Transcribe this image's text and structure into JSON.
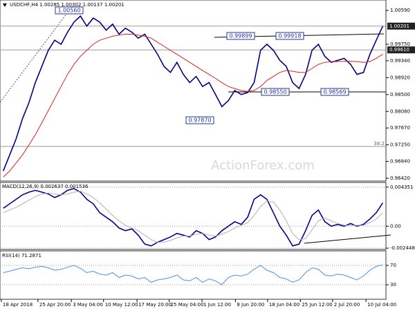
{
  "chart_data": [
    {
      "type": "line",
      "title": "USDCHF,H4 1.00285 1.00302 1.00137 1.00201",
      "watermark": "ActionForex.com",
      "xlim": [
        -0.5,
        59.5
      ],
      "ylim": [
        0.9635,
        1.0085
      ],
      "yticks": [
        {
          "value": 1.0059,
          "label": "1.00590"
        },
        {
          "value": 0.9975,
          "label": "0.99750"
        },
        {
          "value": 0.9934,
          "label": "0.99340"
        },
        {
          "value": 0.9892,
          "label": "0.98920"
        },
        {
          "value": 0.985,
          "label": "0.98500"
        },
        {
          "value": 0.9808,
          "label": "0.98080"
        },
        {
          "value": 0.9767,
          "label": "0.97670"
        },
        {
          "value": 0.9725,
          "label": "0.97250"
        },
        {
          "value": 0.9684,
          "label": "0.96840"
        },
        {
          "value": 0.9642,
          "label": "0.96420"
        }
      ],
      "levels": [
        {
          "value": 1.00201,
          "label": "1.00201"
        },
        {
          "value": 0.9961,
          "label": "0.99610"
        }
      ],
      "fib": {
        "value": 0.9721,
        "label": "38.2"
      },
      "annotations": [
        "1.00560",
        "0.99899",
        "0.99918",
        "0.98550",
        "0.98569",
        "0.97870"
      ],
      "series": [
        {
          "name": "Price",
          "color": "#000080",
          "values": [
            0.966,
            0.97,
            0.974,
            0.979,
            0.983,
            0.988,
            0.992,
            0.996,
            0.9985,
            0.9975,
            1.0005,
            1.003,
            1.0045,
            1.002,
            1.004,
            1.003,
            1.001,
            1.0025,
            1.0,
            1.0015,
            1.0005,
            0.999,
            1.0,
            0.9975,
            0.995,
            0.992,
            0.9905,
            0.993,
            0.99,
            0.988,
            0.9895,
            0.987,
            0.988,
            0.985,
            0.982,
            0.9835,
            0.986,
            0.985,
            0.9855,
            0.988,
            0.996,
            0.9975,
            0.996,
            0.9935,
            0.992,
            0.988,
            0.9865,
            0.99,
            0.996,
            0.9975,
            0.9945,
            0.993,
            0.9935,
            0.994,
            0.9925,
            0.99,
            0.9905,
            0.995,
            0.9985,
            1.002
          ]
        },
        {
          "name": "MA",
          "color": "#e02020",
          "values": [
            0.9645,
            0.966,
            0.968,
            0.97,
            0.9725,
            0.975,
            0.978,
            0.981,
            0.984,
            0.987,
            0.99,
            0.9925,
            0.9945,
            0.996,
            0.9975,
            0.9985,
            0.999,
            0.9995,
            0.9998,
            1.0,
            1.0,
            0.9998,
            0.9995,
            0.999,
            0.998,
            0.997,
            0.996,
            0.995,
            0.994,
            0.993,
            0.992,
            0.991,
            0.99,
            0.989,
            0.988,
            0.987,
            0.9865,
            0.986,
            0.9858,
            0.986,
            0.987,
            0.9885,
            0.9895,
            0.9905,
            0.991,
            0.9908,
            0.9905,
            0.9905,
            0.9915,
            0.9925,
            0.993,
            0.9932,
            0.9932,
            0.9933,
            0.9933,
            0.9932,
            0.993,
            0.9932,
            0.994,
            0.995
          ]
        }
      ]
    },
    {
      "type": "line",
      "title": "MACD(12,26,9) 0.002637 0.001536",
      "grid": true,
      "xlim": [
        -0.5,
        59.5
      ],
      "ylim": [
        -0.0026,
        0.00488
      ],
      "yticks": [
        0.004351,
        {
          "value": 0,
          "label": "0.00"
        },
        -0.002448
      ],
      "series": [
        {
          "name": "MACD",
          "color": "#00008b",
          "values": [
            0.002,
            0.0025,
            0.003,
            0.0035,
            0.0038,
            0.004,
            0.0038,
            0.0036,
            0.0032,
            0.0035,
            0.004,
            0.0042,
            0.0038,
            0.003,
            0.0025,
            0.0015,
            0.001,
            0.0005,
            -0.0002,
            -0.0005,
            -0.0003,
            -0.001,
            -0.002,
            -0.0022,
            -0.0018,
            -0.0015,
            -0.0012,
            -0.0008,
            -0.001,
            -0.0012,
            -0.0005,
            -0.0008,
            -0.0015,
            -0.0012,
            -0.0005,
            0.0,
            0.0005,
            0.0002,
            0.001,
            0.003,
            0.0035,
            0.003,
            0.0015,
            0.0,
            -0.001,
            -0.0022,
            -0.002,
            -0.0005,
            0.0012,
            0.0018,
            0.0005,
            0.0,
            0.0002,
            0.0,
            0.0003,
            0.0,
            0.0002,
            0.0008,
            0.0015,
            0.0026
          ]
        },
        {
          "name": "Signal",
          "color": "#b0b0b0",
          "values": [
            0.0015,
            0.0018,
            0.0021,
            0.0025,
            0.0029,
            0.0033,
            0.0036,
            0.0037,
            0.0036,
            0.0035,
            0.0036,
            0.0038,
            0.0039,
            0.0036,
            0.0032,
            0.0026,
            0.0019,
            0.0012,
            0.0006,
            0.0001,
            -0.0002,
            -0.0005,
            -0.001,
            -0.0015,
            -0.0018,
            -0.0018,
            -0.0016,
            -0.0013,
            -0.0011,
            -0.0011,
            -0.0009,
            -0.0008,
            -0.001,
            -0.0011,
            -0.0009,
            -0.0006,
            -0.0002,
            0.0001,
            0.0004,
            0.0012,
            0.0022,
            0.0028,
            0.0027,
            0.0018,
            0.0006,
            -0.0008,
            -0.0015,
            -0.0014,
            -0.0004,
            0.0006,
            0.0009,
            0.0006,
            0.0003,
            0.0001,
            0.0001,
            0.0001,
            0.0001,
            0.0004,
            0.0008,
            0.0015
          ]
        }
      ]
    },
    {
      "type": "line",
      "title": "RSI(14) 71.2871",
      "grid": true,
      "xlim": [
        -0.5,
        59.5
      ],
      "ylim": [
        0,
        100
      ],
      "yticks": [
        70,
        30
      ],
      "xticks": [
        {
          "value": -0.3,
          "label": "18 Apr 2018"
        },
        {
          "value": 5.4,
          "label": "25 Apr 20:00"
        },
        {
          "value": 10.6,
          "label": "3 May 04:00"
        },
        {
          "value": 15.6,
          "label": "10 May 12:00"
        },
        {
          "value": 20.8,
          "label": "17 May 20:00"
        },
        {
          "value": 25.8,
          "label": "25 May 04:00"
        },
        {
          "value": 30.9,
          "label": "1 Jun 12:00"
        },
        {
          "value": 36.1,
          "label": "8 Jun 20:00"
        },
        {
          "value": 41.1,
          "label": "18 Jun 04:00"
        },
        {
          "value": 46.2,
          "label": "25 Jun 12:00"
        },
        {
          "value": 51.2,
          "label": "2 Jul 20:00"
        },
        {
          "value": 56.4,
          "label": "10 Jul 04:00"
        }
      ],
      "series": [
        {
          "name": "RSI",
          "color": "#4a90e2",
          "values": [
            55,
            58,
            62,
            65,
            63,
            66,
            68,
            65,
            60,
            62,
            66,
            70,
            64,
            55,
            58,
            52,
            50,
            55,
            45,
            50,
            48,
            42,
            45,
            35,
            40,
            42,
            45,
            50,
            40,
            38,
            45,
            35,
            42,
            38,
            30,
            45,
            50,
            48,
            52,
            62,
            70,
            60,
            55,
            45,
            42,
            35,
            40,
            55,
            65,
            62,
            50,
            48,
            52,
            50,
            45,
            40,
            48,
            60,
            68,
            71
          ]
        }
      ]
    }
  ]
}
